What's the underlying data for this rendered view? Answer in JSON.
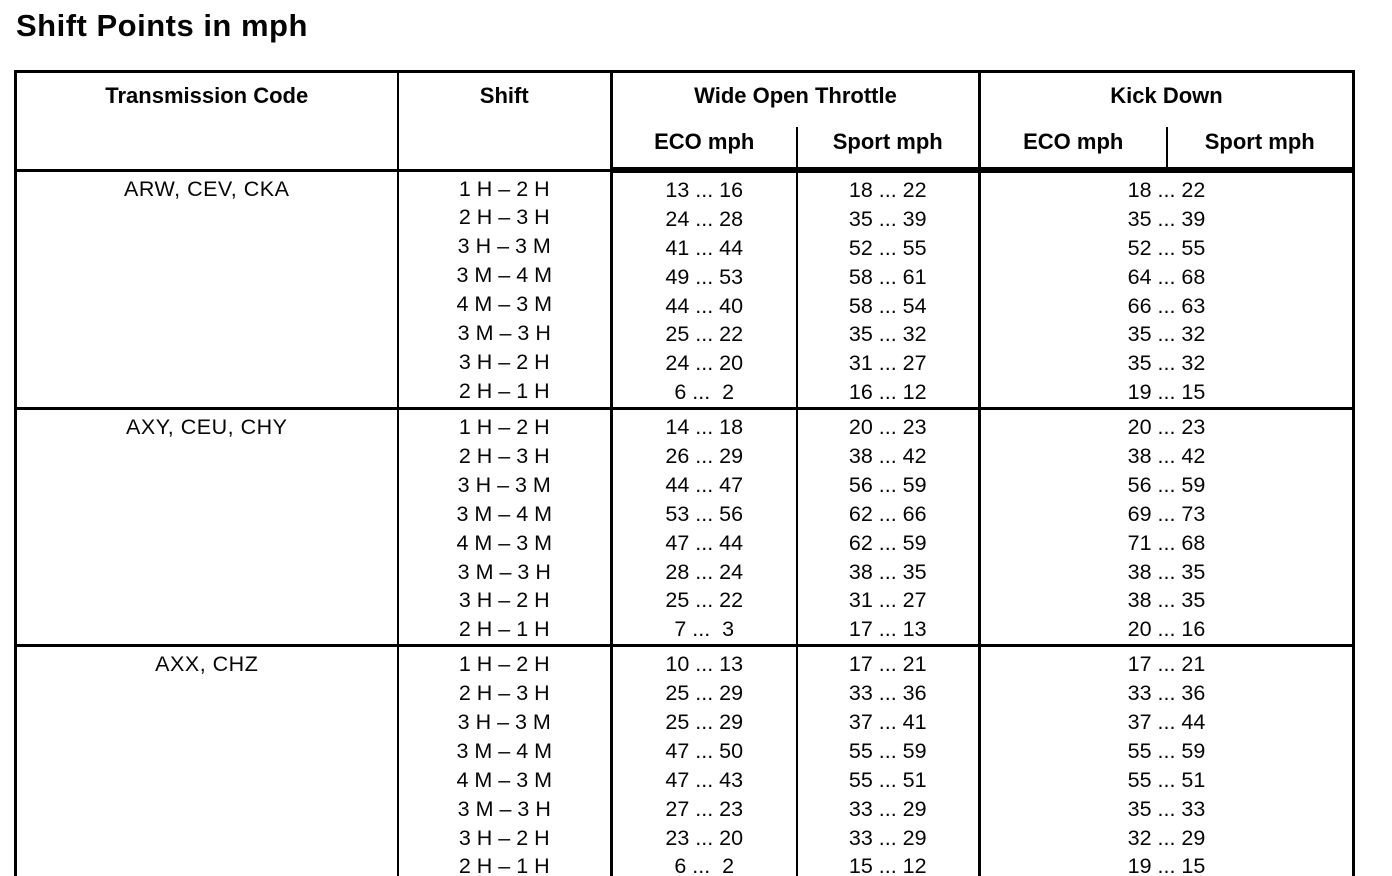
{
  "title": "Shift Points in mph",
  "table": {
    "headers": {
      "transmission_code": "Transmission Code",
      "shift": "Shift",
      "wide_open_throttle": "Wide Open Throttle",
      "kick_down": "Kick Down",
      "eco": "ECO mph",
      "sport": "Sport mph"
    },
    "groups": [
      {
        "code": "ARW, CEV, CKA",
        "rows": [
          {
            "shift": "1 H – 2 H",
            "wot_eco": "13 ... 16",
            "wot_sport": "18 ... 22",
            "kick_down": "18 ... 22"
          },
          {
            "shift": "2 H – 3 H",
            "wot_eco": "24 ... 28",
            "wot_sport": "35 ... 39",
            "kick_down": "35 ... 39"
          },
          {
            "shift": "3 H – 3 M",
            "wot_eco": "41 ... 44",
            "wot_sport": "52 ... 55",
            "kick_down": "52 ... 55"
          },
          {
            "shift": "3 M – 4 M",
            "wot_eco": "49 ... 53",
            "wot_sport": "58 ... 61",
            "kick_down": "64 ... 68"
          },
          {
            "shift": "4 M – 3 M",
            "wot_eco": "44 ... 40",
            "wot_sport": "58 ... 54",
            "kick_down": "66 ... 63"
          },
          {
            "shift": "3 M – 3 H",
            "wot_eco": "25 ... 22",
            "wot_sport": "35 ... 32",
            "kick_down": "35 ... 32"
          },
          {
            "shift": "3 H – 2 H",
            "wot_eco": "24 ... 20",
            "wot_sport": "31 ... 27",
            "kick_down": "35 ... 32"
          },
          {
            "shift": "2 H – 1 H",
            "wot_eco": "6 ...  2",
            "wot_sport": "16 ... 12",
            "kick_down": "19 ... 15"
          }
        ]
      },
      {
        "code": "AXY, CEU, CHY",
        "rows": [
          {
            "shift": "1 H – 2 H",
            "wot_eco": "14 ... 18",
            "wot_sport": "20 ... 23",
            "kick_down": "20 ... 23"
          },
          {
            "shift": "2 H – 3 H",
            "wot_eco": "26 ... 29",
            "wot_sport": "38 ... 42",
            "kick_down": "38 ... 42"
          },
          {
            "shift": "3 H – 3 M",
            "wot_eco": "44 ... 47",
            "wot_sport": "56 ... 59",
            "kick_down": "56 ... 59"
          },
          {
            "shift": "3 M – 4 M",
            "wot_eco": "53 ... 56",
            "wot_sport": "62 ... 66",
            "kick_down": "69 ... 73"
          },
          {
            "shift": "4 M – 3 M",
            "wot_eco": "47 ... 44",
            "wot_sport": "62 ... 59",
            "kick_down": "71 ... 68"
          },
          {
            "shift": "3 M – 3 H",
            "wot_eco": "28 ... 24",
            "wot_sport": "38 ... 35",
            "kick_down": "38 ... 35"
          },
          {
            "shift": "3 H – 2 H",
            "wot_eco": "25 ... 22",
            "wot_sport": "31 ... 27",
            "kick_down": "38 ... 35"
          },
          {
            "shift": "2 H – 1 H",
            "wot_eco": "7 ...  3",
            "wot_sport": "17 ... 13",
            "kick_down": "20 ... 16"
          }
        ]
      },
      {
        "code": "AXX, CHZ",
        "rows": [
          {
            "shift": "1 H – 2 H",
            "wot_eco": "10 ... 13",
            "wot_sport": "17 ... 21",
            "kick_down": "17 ... 21"
          },
          {
            "shift": "2 H – 3 H",
            "wot_eco": "25 ... 29",
            "wot_sport": "33 ... 36",
            "kick_down": "33 ... 36"
          },
          {
            "shift": "3 H – 3 M",
            "wot_eco": "25 ... 29",
            "wot_sport": "37 ... 41",
            "kick_down": "37 ... 44"
          },
          {
            "shift": "3 M – 4 M",
            "wot_eco": "47 ... 50",
            "wot_sport": "55 ... 59",
            "kick_down": "55 ... 59"
          },
          {
            "shift": "4 M – 3 M",
            "wot_eco": "47 ... 43",
            "wot_sport": "55 ... 51",
            "kick_down": "55 ... 51"
          },
          {
            "shift": "3 M – 3 H",
            "wot_eco": "27 ... 23",
            "wot_sport": "33 ... 29",
            "kick_down": "35 ... 33"
          },
          {
            "shift": "3 H – 2 H",
            "wot_eco": "23 ... 20",
            "wot_sport": "33 ... 29",
            "kick_down": "32 ... 29"
          },
          {
            "shift": "2 H – 1 H",
            "wot_eco": "6 ...  2",
            "wot_sport": "15 ... 12",
            "kick_down": "19 ... 15"
          }
        ]
      }
    ]
  }
}
